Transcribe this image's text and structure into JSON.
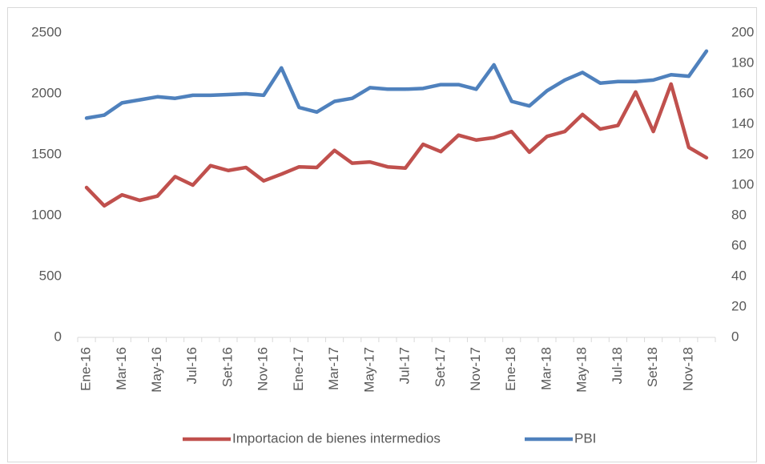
{
  "chart_data": {
    "type": "line",
    "categories": [
      "Ene-16",
      null,
      "Mar-16",
      null,
      "May-16",
      null,
      "Jul-16",
      null,
      "Set-16",
      null,
      "Nov-16",
      null,
      "Ene-17",
      null,
      "Mar-17",
      null,
      "May-17",
      null,
      "Jul-17",
      null,
      "Set-17",
      null,
      "Nov-17",
      null,
      "Ene-18",
      null,
      "Mar-18",
      null,
      "May-18",
      null,
      "Jul-18",
      null,
      "Set-18",
      null,
      "Nov-18",
      null
    ],
    "series": [
      {
        "name": "Importacion de bienes intermedios",
        "color": "#c0504d",
        "axis": "y",
        "values": [
          1230,
          1080,
          1170,
          1125,
          1160,
          1320,
          1250,
          1410,
          1370,
          1395,
          1285,
          1340,
          1400,
          1395,
          1535,
          1430,
          1440,
          1400,
          1390,
          1585,
          1525,
          1660,
          1620,
          1640,
          1690,
          1520,
          1650,
          1690,
          1830,
          1710,
          1740,
          2015,
          1690,
          2080,
          1560,
          1475
        ]
      },
      {
        "name": "PBI",
        "color": "#4f81bd",
        "axis": "y2",
        "values": [
          144,
          146,
          154,
          156,
          158,
          157,
          159,
          159,
          159.5,
          160,
          159,
          177,
          151,
          148,
          155,
          157,
          164,
          163,
          163,
          163.5,
          166,
          166,
          163,
          179,
          155,
          152,
          162,
          169,
          174,
          167,
          168,
          168,
          169,
          172.5,
          171.5,
          188
        ]
      }
    ],
    "ylim": [
      0,
      2500
    ],
    "yticks": [
      0,
      500,
      1000,
      1500,
      2000,
      2500
    ],
    "y2lim": [
      0,
      200
    ],
    "y2ticks": [
      0,
      20,
      40,
      60,
      80,
      100,
      120,
      140,
      160,
      180,
      200
    ],
    "legend": "bottom"
  }
}
